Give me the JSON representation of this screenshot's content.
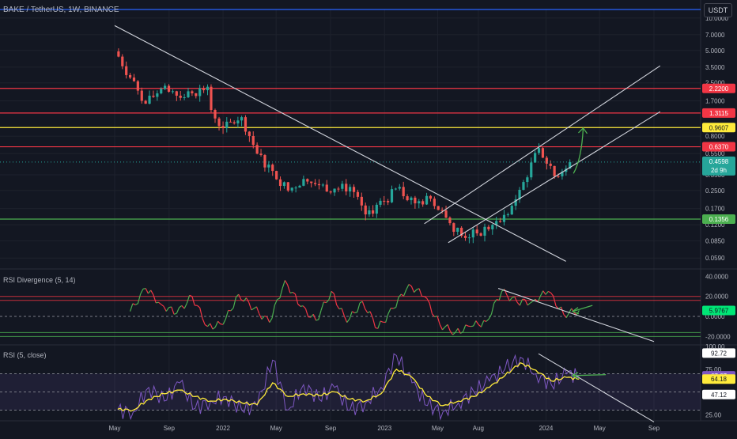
{
  "header": {
    "title": "BAKE / TetherUS, 1W, BINANCE",
    "currency_button": "USDT"
  },
  "colors": {
    "background": "#131722",
    "up": "#26a69a",
    "down": "#ef5350",
    "red_line": "#f23645",
    "yellow_line": "#ffeb3b",
    "green_line": "#4caf50",
    "blue_line": "#2962ff",
    "trend_line": "#d1d4dc",
    "arrow": "#4caf50",
    "rsi_line": "#7e57c2",
    "rsi_ma": "#ffeb3b",
    "div_up": "#4caf50",
    "div_down": "#f23645"
  },
  "chart_data": [
    {
      "type": "candlestick",
      "pane": "price",
      "scale": "log",
      "ylim": [
        0.05,
        12
      ],
      "x_ticks": [
        "May",
        "Sep",
        "2022",
        "May",
        "Sep",
        "2023",
        "May",
        "Aug",
        "2024",
        "May",
        "Sep"
      ],
      "x_tick_dates": [
        "2021-05-01",
        "2021-09-01",
        "2022-01-01",
        "2022-05-01",
        "2022-09-01",
        "2023-01-01",
        "2023-05-01",
        "2023-08-01",
        "2024-01-01",
        "2024-05-01",
        "2024-09-01"
      ],
      "y_ticks": [
        10.0,
        7.0,
        5.0,
        3.5,
        2.5,
        1.7,
        0.8,
        0.55,
        0.35,
        0.25,
        0.17,
        0.12,
        0.085,
        0.059
      ],
      "y_tick_labels": [
        "10.0000",
        "7.0000",
        "5.0000",
        "3.5000",
        "2.5000",
        "1.7000",
        "0.8000",
        "0.5500",
        "0.3500",
        "0.2500",
        "0.1700",
        "0.1200",
        "0.0850",
        "0.0590"
      ],
      "horizontal_levels": [
        {
          "value": 12.0,
          "color": "blue"
        },
        {
          "value": 2.22,
          "label": "2.2200",
          "color": "red"
        },
        {
          "value": 1.3115,
          "label": "1.3115",
          "color": "red"
        },
        {
          "value": 0.9607,
          "label": "0.9607",
          "color": "yellow"
        },
        {
          "value": 0.637,
          "label": "0.6370",
          "color": "red"
        },
        {
          "value": 0.1356,
          "label": "0.1356",
          "color": "green"
        }
      ],
      "last_price": {
        "value": 0.4598,
        "label": "0.4598",
        "countdown": "2d 9h"
      },
      "trend_lines": [
        {
          "from": [
            "2021-05-01",
            8.5
          ],
          "to": [
            "2024-02-15",
            0.055
          ]
        },
        {
          "from": [
            "2023-04-01",
            0.123
          ],
          "to": [
            "2024-09-15",
            3.6
          ]
        },
        {
          "from": [
            "2023-05-25",
            0.082
          ],
          "to": [
            "2024-09-15",
            1.35
          ]
        }
      ],
      "arrow": {
        "from": [
          "2024-03-03",
          0.36
        ],
        "to": [
          "2024-03-25",
          0.95
        ]
      },
      "candles": [
        [
          "2021-05-01",
          4.9,
          5.1
        ],
        [
          "2021-06-05",
          4.9,
          2.8
        ],
        [
          "2021-07-10",
          2.8,
          1.6
        ],
        [
          "2021-08-14",
          1.6,
          2.2
        ],
        [
          "2021-09-18",
          2.2,
          1.9
        ],
        [
          "2021-10-23",
          1.9,
          2.0
        ],
        [
          "2021-11-27",
          2.0,
          2.3
        ],
        [
          "2021-12-05",
          2.3,
          1.4
        ],
        [
          "2022-01-01",
          1.4,
          0.95
        ],
        [
          "2022-02-12",
          0.95,
          1.2
        ],
        [
          "2022-03-19",
          1.2,
          0.55
        ],
        [
          "2022-04-23",
          0.55,
          0.38
        ],
        [
          "2022-05-28",
          0.38,
          0.25
        ],
        [
          "2022-07-02",
          0.25,
          0.32
        ],
        [
          "2022-08-06",
          0.32,
          0.28
        ],
        [
          "2022-09-10",
          0.28,
          0.26
        ],
        [
          "2022-10-15",
          0.26,
          0.27
        ],
        [
          "2022-11-19",
          0.27,
          0.15
        ],
        [
          "2022-12-31",
          0.15,
          0.2
        ],
        [
          "2023-02-04",
          0.2,
          0.27
        ],
        [
          "2023-03-11",
          0.27,
          0.19
        ],
        [
          "2023-04-15",
          0.19,
          0.21
        ],
        [
          "2023-05-20",
          0.21,
          0.14
        ],
        [
          "2023-06-24",
          0.14,
          0.095
        ],
        [
          "2023-07-29",
          0.095,
          0.1
        ],
        [
          "2023-09-02",
          0.1,
          0.12
        ],
        [
          "2023-10-07",
          0.12,
          0.15
        ],
        [
          "2023-11-11",
          0.15,
          0.3
        ],
        [
          "2023-12-16",
          0.3,
          0.62
        ],
        [
          "2024-01-20",
          0.62,
          0.34
        ],
        [
          "2024-02-24",
          0.34,
          0.4598
        ]
      ]
    },
    {
      "type": "line",
      "pane": "indicator",
      "name": "RSI Divergence (5, 14)",
      "ylim": [
        -26,
        45
      ],
      "y_ticks": [
        40.0,
        20.0,
        0.0,
        -20.0
      ],
      "y_tick_labels": [
        "40.0000",
        "20.0000",
        "0.0000",
        "-20.0000"
      ],
      "bands": [
        20.0,
        16.0,
        -16.0,
        -20.0
      ],
      "dashed_level": 0.0,
      "current": {
        "value": 5.9767,
        "label": "5.9767"
      },
      "trend_line": {
        "from": [
          "2023-09-15",
          28
        ],
        "to": [
          "2024-09-01",
          -25
        ]
      },
      "arrow": {
        "from": [
          "2024-04-15",
          11
        ],
        "to": [
          "2024-03-01",
          5
        ]
      },
      "x": [
        "2021-06-05",
        "2021-07-10",
        "2021-08-14",
        "2021-09-18",
        "2021-10-23",
        "2021-11-27",
        "2022-01-01",
        "2022-02-05",
        "2022-03-12",
        "2022-04-16",
        "2022-05-21",
        "2022-06-25",
        "2022-07-30",
        "2022-09-03",
        "2022-10-08",
        "2022-11-12",
        "2022-12-17",
        "2023-01-21",
        "2023-02-25",
        "2023-04-01",
        "2023-05-06",
        "2023-06-10",
        "2023-07-15",
        "2023-08-19",
        "2023-09-23",
        "2023-10-28",
        "2023-12-02",
        "2024-01-06",
        "2024-02-10",
        "2024-03-16"
      ],
      "values": [
        5,
        28,
        12,
        3,
        20,
        -10,
        -8,
        22,
        8,
        -6,
        36,
        10,
        -4,
        25,
        -6,
        15,
        -12,
        8,
        32,
        20,
        -8,
        -16,
        -10,
        -5,
        25,
        14,
        15,
        25,
        2,
        6
      ]
    },
    {
      "type": "line",
      "pane": "rsi",
      "name": "RSI (5, close)",
      "ylim": [
        20,
        100
      ],
      "y_ticks": [
        100,
        75,
        25
      ],
      "y_tick_labels": [
        "100.00",
        "75.00",
        "25.00"
      ],
      "levels": [
        70,
        50,
        30
      ],
      "labels": [
        {
          "value": 92.72,
          "label": "92.72",
          "style": "white"
        },
        {
          "value": 67.67,
          "label": "67.67",
          "style": "purple"
        },
        {
          "value": 64.18,
          "label": "64.18",
          "style": "yellow"
        },
        {
          "value": 47.12,
          "label": "47.12",
          "style": "white"
        }
      ],
      "trend_line": {
        "from": [
          "2023-12-15",
          92
        ],
        "to": [
          "2024-09-01",
          17
        ]
      },
      "arrow": {
        "from": [
          "2024-05-15",
          69
        ],
        "to": [
          "2024-03-01",
          68
        ]
      },
      "x": [
        "2021-05-08",
        "2021-06-12",
        "2021-07-17",
        "2021-08-21",
        "2021-09-25",
        "2021-10-30",
        "2021-12-04",
        "2022-01-08",
        "2022-02-12",
        "2022-03-19",
        "2022-04-23",
        "2022-05-28",
        "2022-07-02",
        "2022-08-06",
        "2022-09-10",
        "2022-10-15",
        "2022-11-19",
        "2022-12-24",
        "2023-01-28",
        "2023-03-04",
        "2023-04-08",
        "2023-05-13",
        "2023-06-17",
        "2023-07-22",
        "2023-08-26",
        "2023-09-30",
        "2023-11-04",
        "2023-12-09",
        "2024-01-13",
        "2024-02-17",
        "2024-03-16"
      ],
      "rsi": [
        30,
        28,
        55,
        40,
        60,
        32,
        40,
        45,
        30,
        35,
        85,
        30,
        58,
        42,
        55,
        30,
        38,
        55,
        90,
        60,
        35,
        28,
        38,
        50,
        62,
        75,
        88,
        70,
        58,
        70,
        67.67
      ],
      "rsi_ma": [
        31,
        30,
        42,
        48,
        52,
        45,
        40,
        42,
        38,
        36,
        60,
        45,
        48,
        46,
        50,
        42,
        40,
        48,
        75,
        66,
        45,
        35,
        40,
        45,
        55,
        68,
        82,
        74,
        62,
        66,
        64.18
      ]
    }
  ]
}
